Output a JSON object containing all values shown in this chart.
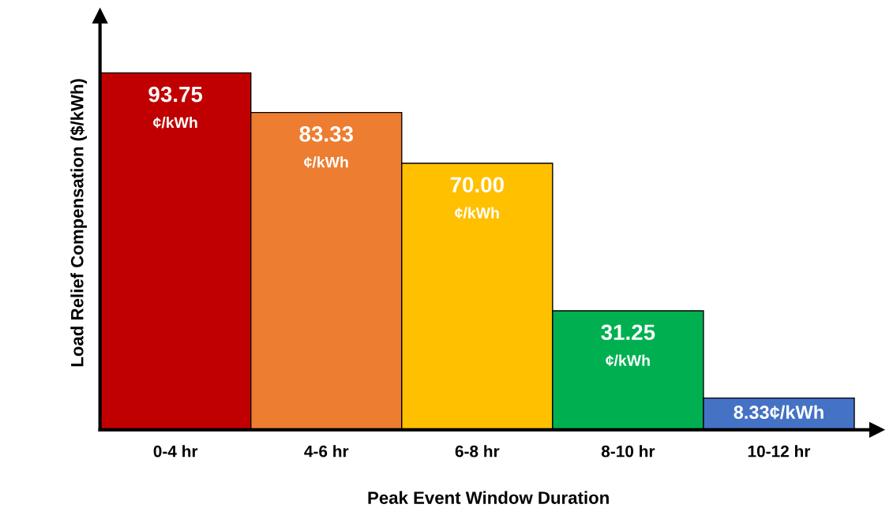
{
  "chart_data": {
    "type": "bar",
    "categories": [
      "0-4 hr",
      "4-6 hr",
      "6-8 hr",
      "8-10 hr",
      "10-12 hr"
    ],
    "values": [
      93.75,
      83.33,
      70.0,
      31.25,
      8.33
    ],
    "colors": [
      "#c00000",
      "#ed7d31",
      "#ffc000",
      "#00b050",
      "#4472c4"
    ],
    "value_labels": [
      "93.75\n¢/kWh",
      "83.33\n¢/kWh",
      "70.00\n¢/kWh",
      "31.25\n¢/kWh",
      "8.33¢/kWh"
    ],
    "xlabel": "Peak Event Window Duration",
    "ylabel": "Load Relief Compensation ($/kWh)",
    "grid": false,
    "legend": false
  }
}
